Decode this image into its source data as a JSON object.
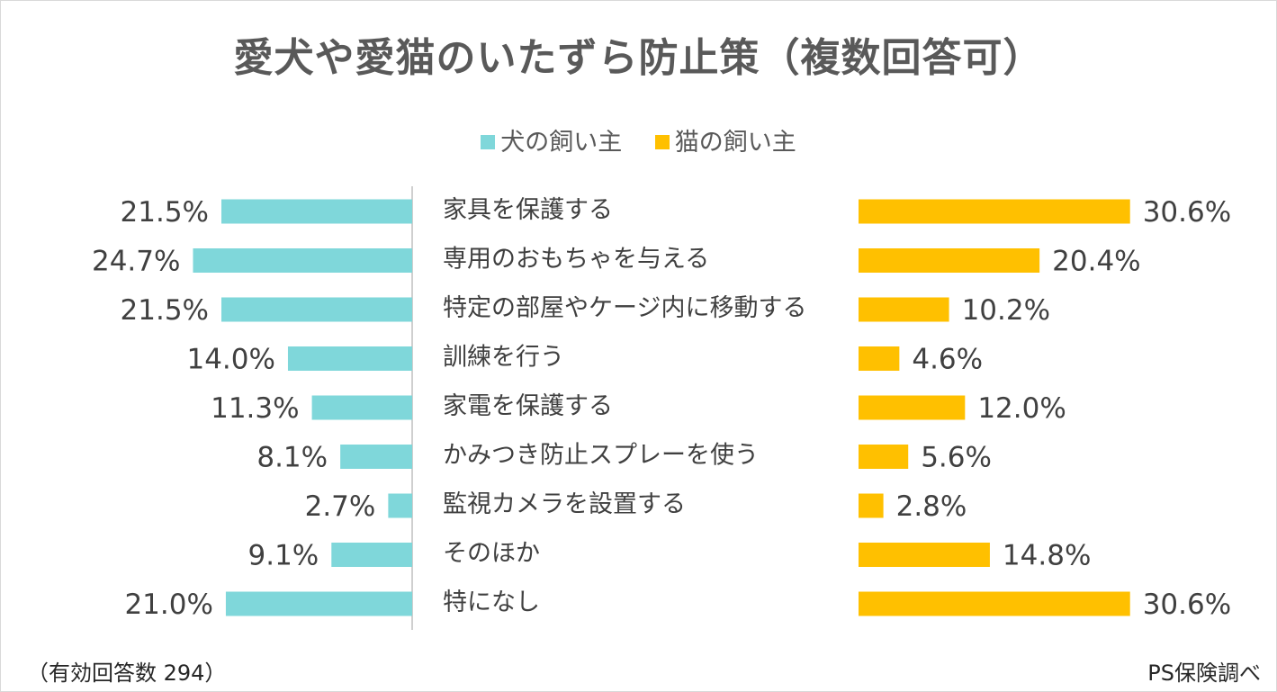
{
  "title": "愛犬や愛猫のいたずら防止策（複数回答可）",
  "legend": [
    {
      "label": "犬の飼い主",
      "color": "#7fd7da"
    },
    {
      "label": "猫の飼い主",
      "color": "#ffc000"
    }
  ],
  "footer": {
    "sample": "（有効回答数 294）",
    "source": "PS保険調べ"
  },
  "chart_data": {
    "type": "bar",
    "orientation": "horizontal-butterfly",
    "title": "愛犬や愛猫のいたずら防止策（複数回答可）",
    "categories": [
      "家具を保護する",
      "専用のおもちゃを与える",
      "特定の部屋やケージ内に移動する",
      "訓練を行う",
      "家電を保護する",
      "かみつき防止スプレーを使う",
      "監視カメラを設置する",
      "そのほか",
      "特になし"
    ],
    "series": [
      {
        "name": "犬の飼い主",
        "color": "#7fd7da",
        "values": [
          21.5,
          24.7,
          21.5,
          14.0,
          11.3,
          8.1,
          2.7,
          9.1,
          21.0
        ],
        "labels": [
          "21.5%",
          "24.7%",
          "21.5%",
          "14.0%",
          "11.3%",
          "8.1%",
          "2.7%",
          "9.1%",
          "21.0%"
        ]
      },
      {
        "name": "猫の飼い主",
        "color": "#ffc000",
        "values": [
          30.6,
          20.4,
          10.2,
          4.6,
          12.0,
          5.6,
          2.8,
          14.8,
          30.6
        ],
        "labels": [
          "30.6%",
          "20.4%",
          "10.2%",
          "4.6%",
          "12.0%",
          "5.6%",
          "2.8%",
          "14.8%",
          "30.6%"
        ]
      }
    ],
    "unit": "%",
    "grid": false
  }
}
